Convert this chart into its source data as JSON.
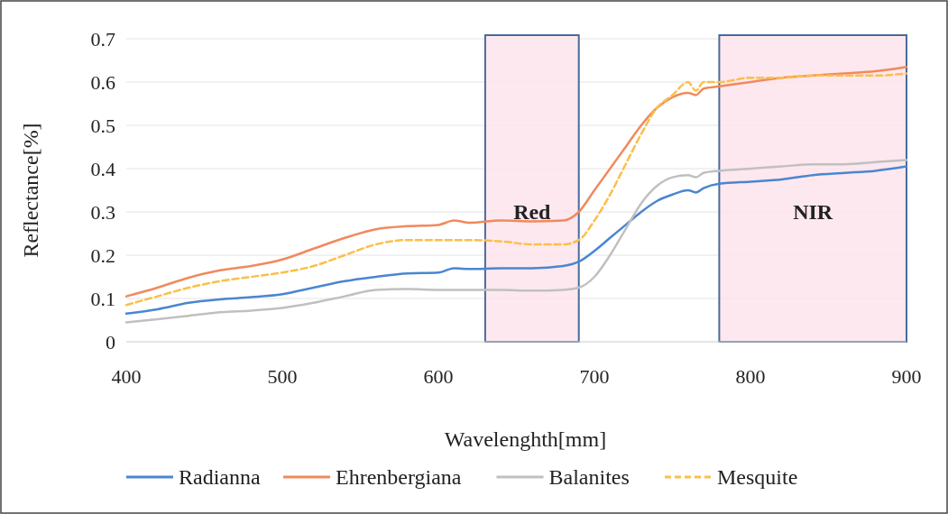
{
  "chart_data": {
    "type": "line",
    "xlabel": "Wavelenghth[mm]",
    "ylabel": "Reflectance[%]",
    "xlim": [
      400,
      900
    ],
    "xticks": [
      400,
      500,
      600,
      700,
      800,
      900
    ],
    "ylim": [
      0,
      0.7
    ],
    "yticks": [
      {
        "value": 0,
        "label": "0"
      },
      0.1,
      0.2,
      0.3,
      0.4,
      0.5,
      0.6,
      0.7
    ],
    "grid": "y",
    "legend": "bottom",
    "bands": [
      {
        "axis": "x",
        "from": 630,
        "to": 690,
        "label": "Red",
        "color": "#fde4ec"
      },
      {
        "axis": "x",
        "from": 780,
        "to": 900,
        "label": "NIR",
        "color": "#fde4ec"
      }
    ],
    "series": [
      {
        "name": "Radianna",
        "color": "#4a86d0",
        "line_style": "solid",
        "x": [
          400,
          420,
          440,
          460,
          480,
          500,
          520,
          540,
          560,
          580,
          600,
          610,
          620,
          640,
          660,
          680,
          690,
          700,
          710,
          720,
          730,
          740,
          750,
          760,
          765,
          770,
          780,
          800,
          820,
          840,
          860,
          880,
          900
        ],
        "values": [
          0.065,
          0.075,
          0.09,
          0.098,
          0.103,
          0.11,
          0.125,
          0.14,
          0.15,
          0.158,
          0.16,
          0.17,
          0.168,
          0.17,
          0.17,
          0.175,
          0.185,
          0.21,
          0.24,
          0.27,
          0.3,
          0.325,
          0.34,
          0.35,
          0.345,
          0.355,
          0.365,
          0.37,
          0.375,
          0.385,
          0.39,
          0.395,
          0.405
        ]
      },
      {
        "name": "Ehrenbergiana",
        "color": "#f08a5d",
        "line_style": "solid",
        "x": [
          400,
          420,
          440,
          460,
          480,
          500,
          520,
          540,
          560,
          580,
          600,
          610,
          620,
          640,
          660,
          680,
          690,
          700,
          710,
          720,
          730,
          740,
          750,
          760,
          765,
          770,
          780,
          800,
          820,
          840,
          860,
          880,
          900
        ],
        "values": [
          0.105,
          0.125,
          0.148,
          0.165,
          0.175,
          0.19,
          0.215,
          0.24,
          0.26,
          0.267,
          0.27,
          0.28,
          0.275,
          0.28,
          0.278,
          0.28,
          0.3,
          0.35,
          0.4,
          0.45,
          0.5,
          0.54,
          0.565,
          0.575,
          0.57,
          0.585,
          0.59,
          0.6,
          0.61,
          0.615,
          0.62,
          0.625,
          0.635
        ]
      },
      {
        "name": "Balanites",
        "color": "#c0c0c0",
        "line_style": "solid",
        "x": [
          400,
          420,
          440,
          460,
          480,
          500,
          520,
          540,
          560,
          580,
          600,
          620,
          640,
          660,
          680,
          690,
          700,
          710,
          720,
          730,
          740,
          750,
          760,
          765,
          770,
          780,
          800,
          820,
          840,
          860,
          880,
          900
        ],
        "values": [
          0.045,
          0.052,
          0.06,
          0.068,
          0.072,
          0.078,
          0.09,
          0.105,
          0.12,
          0.122,
          0.12,
          0.12,
          0.12,
          0.118,
          0.12,
          0.125,
          0.15,
          0.2,
          0.26,
          0.32,
          0.36,
          0.38,
          0.385,
          0.38,
          0.39,
          0.395,
          0.4,
          0.405,
          0.41,
          0.41,
          0.415,
          0.42
        ]
      },
      {
        "name": "Mesquite",
        "color": "#fbbf4a",
        "line_style": "dashed",
        "x": [
          400,
          420,
          440,
          460,
          480,
          500,
          520,
          540,
          560,
          580,
          600,
          620,
          640,
          660,
          680,
          690,
          700,
          710,
          720,
          730,
          740,
          750,
          760,
          765,
          770,
          780,
          800,
          820,
          840,
          860,
          880,
          900
        ],
        "values": [
          0.085,
          0.105,
          0.125,
          0.14,
          0.15,
          0.16,
          0.175,
          0.2,
          0.225,
          0.235,
          0.235,
          0.235,
          0.232,
          0.225,
          0.225,
          0.235,
          0.28,
          0.34,
          0.41,
          0.48,
          0.54,
          0.57,
          0.6,
          0.58,
          0.6,
          0.6,
          0.61,
          0.61,
          0.615,
          0.615,
          0.615,
          0.62
        ]
      }
    ]
  }
}
